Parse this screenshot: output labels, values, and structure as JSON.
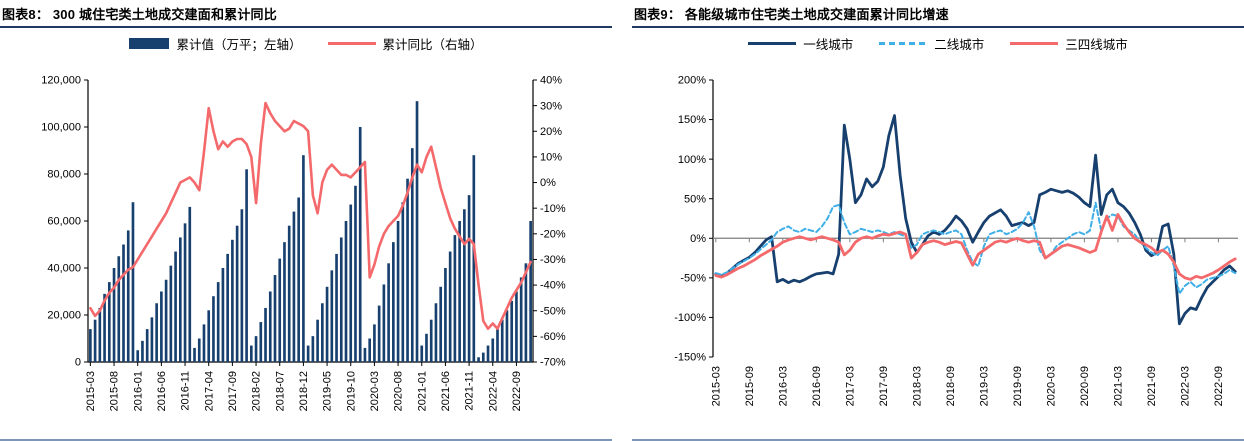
{
  "figures": [
    {
      "id": "fig8",
      "title": "图表8：  300 城住宅类土地成交建面和累计同比",
      "legend": [
        {
          "type": "bar",
          "color": "#17406f",
          "label": "累计值（万平；左轴）"
        },
        {
          "type": "line",
          "color": "#f4696b",
          "label": "累计同比（右轴）"
        }
      ],
      "chart_data": {
        "type": "bar+line",
        "n_points": 94,
        "x_tick_step": 5,
        "x_tick_labels": [
          "2015-03",
          "2015-08",
          "2016-01",
          "2016-06",
          "2016-11",
          "2017-04",
          "2017-09",
          "2018-02",
          "2018-07",
          "2018-12",
          "2019-05",
          "2019-10",
          "2020-03",
          "2020-08",
          "2021-01",
          "2021-06",
          "2021-11",
          "2022-04",
          "2022-09"
        ],
        "left_axis": {
          "min": 0,
          "max": 120000,
          "tick_labels_top_down": [
            "120,000",
            "100,000",
            "80,000",
            "60,000",
            "40,000",
            "20,000",
            "0"
          ]
        },
        "right_axis": {
          "min": -70,
          "max": 40,
          "tick_labels_top_down": [
            "40%",
            "30%",
            "20%",
            "10%",
            "0%",
            "-10%",
            "-20%",
            "-30%",
            "-40%",
            "-50%",
            "-60%",
            "-70%"
          ]
        },
        "series": [
          {
            "name": "累计值（万平；左轴）",
            "type": "bar",
            "axis": "left",
            "color": "#17406f",
            "values": [
              14000,
              18000,
              23000,
              29000,
              34000,
              40000,
              45000,
              50000,
              56000,
              68000,
              5000,
              9000,
              14000,
              19000,
              25000,
              30000,
              35000,
              41000,
              47000,
              53000,
              59000,
              66000,
              6000,
              10000,
              16000,
              22000,
              28000,
              34000,
              40000,
              46000,
              52000,
              58000,
              65000,
              82000,
              7000,
              11000,
              17000,
              23000,
              30000,
              37000,
              44000,
              51000,
              58000,
              64000,
              70000,
              88000,
              7000,
              11000,
              18000,
              25000,
              32000,
              39000,
              46000,
              53000,
              60000,
              67000,
              75000,
              100000,
              6000,
              10000,
              16000,
              24000,
              33000,
              42000,
              51000,
              60000,
              68000,
              78000,
              91000,
              111000,
              7000,
              12000,
              18000,
              25000,
              32000,
              40000,
              47000,
              54000,
              60000,
              65000,
              71000,
              88000,
              2000,
              4000,
              7000,
              10000,
              14000,
              18000,
              22000,
              26000,
              30000,
              36000,
              42000,
              60000
            ]
          },
          {
            "name": "累计同比（右轴）",
            "type": "line",
            "axis": "right",
            "color": "#f4696b",
            "width": 2.6,
            "values": [
              -49,
              -52,
              -50,
              -46,
              -43,
              -41,
              -38,
              -36,
              -34,
              -33,
              -30,
              -27,
              -24,
              -21,
              -18,
              -15,
              -12,
              -8,
              -4,
              0,
              1,
              2,
              0,
              -3,
              12,
              29,
              20,
              13,
              16,
              14,
              16,
              17,
              17,
              15,
              10,
              -8,
              15,
              31,
              27,
              24,
              22,
              20,
              21,
              24,
              23,
              22,
              20,
              -5,
              -12,
              0,
              5,
              7,
              5,
              3,
              3,
              2,
              4,
              6,
              8,
              -37,
              -32,
              -25,
              -20,
              -17,
              -15,
              -13,
              -9,
              -4,
              2,
              7,
              4,
              10,
              14,
              6,
              -2,
              -8,
              -14,
              -18,
              -21,
              -24,
              -22,
              -24,
              -40,
              -54,
              -57,
              -55,
              -57,
              -53,
              -49,
              -45,
              -42,
              -39,
              -35,
              -31
            ]
          }
        ]
      }
    },
    {
      "id": "fig9",
      "title": "图表9：  各能级城市住宅类土地成交建面累计同比增速",
      "legend": [
        {
          "type": "line",
          "color": "#17406f",
          "label": "一线城市"
        },
        {
          "type": "line-dashed",
          "color": "#3fafe8",
          "label": "二线城市"
        },
        {
          "type": "line",
          "color": "#f4696b",
          "label": "三四线城市"
        }
      ],
      "chart_data": {
        "type": "line",
        "n_points": 94,
        "x_tick_step": 6,
        "x_tick_labels": [
          "2015-03",
          "2015-09",
          "2016-03",
          "2016-09",
          "2017-03",
          "2017-09",
          "2018-03",
          "2018-09",
          "2019-03",
          "2019-09",
          "2020-03",
          "2020-09",
          "2021-03",
          "2021-09",
          "2022-03",
          "2022-09"
        ],
        "y_axis": {
          "min": -150,
          "max": 200,
          "tick_labels_top_down": [
            "200%",
            "150%",
            "100%",
            "50%",
            "0%",
            "-50%",
            "-100%",
            "-150%"
          ]
        },
        "zero_line": true,
        "series": [
          {
            "name": "一线城市",
            "color": "#17406f",
            "width": 2.8,
            "dash": "",
            "values": [
              -45,
              -48,
              -44,
              -38,
              -32,
              -28,
              -24,
              -18,
              -10,
              -2,
              2,
              -55,
              -52,
              -56,
              -53,
              -55,
              -52,
              -48,
              -45,
              -44,
              -43,
              -45,
              -20,
              143,
              100,
              45,
              55,
              75,
              65,
              72,
              90,
              130,
              155,
              80,
              25,
              -5,
              -18,
              -8,
              3,
              8,
              5,
              10,
              18,
              28,
              22,
              12,
              -5,
              8,
              20,
              28,
              32,
              36,
              28,
              16,
              18,
              20,
              16,
              20,
              55,
              58,
              62,
              60,
              58,
              60,
              57,
              52,
              45,
              40,
              105,
              30,
              55,
              62,
              45,
              40,
              32,
              20,
              5,
              -15,
              -22,
              -18,
              15,
              18,
              -20,
              -108,
              -95,
              -88,
              -90,
              -75,
              -62,
              -55,
              -48,
              -40,
              -35,
              -42
            ]
          },
          {
            "name": "二线城市",
            "color": "#3fafe8",
            "width": 2.0,
            "dash": "5 3",
            "values": [
              -44,
              -46,
              -43,
              -38,
              -33,
              -29,
              -25,
              -20,
              -14,
              -8,
              -2,
              8,
              12,
              15,
              10,
              8,
              12,
              10,
              8,
              15,
              25,
              40,
              42,
              20,
              5,
              8,
              12,
              10,
              8,
              10,
              8,
              5,
              8,
              5,
              2,
              -12,
              -8,
              5,
              8,
              10,
              8,
              5,
              8,
              10,
              5,
              -15,
              -30,
              -35,
              -10,
              5,
              8,
              10,
              5,
              8,
              12,
              20,
              33,
              15,
              -15,
              -25,
              -20,
              -10,
              -5,
              0,
              5,
              8,
              5,
              10,
              45,
              10,
              25,
              30,
              28,
              15,
              10,
              5,
              -5,
              -12,
              -18,
              -22,
              -15,
              -10,
              -35,
              -70,
              -60,
              -55,
              -62,
              -58,
              -52,
              -50,
              -48,
              -45,
              -40,
              -44
            ]
          },
          {
            "name": "三四线城市",
            "color": "#f4696b",
            "width": 2.8,
            "dash": "",
            "values": [
              -47,
              -49,
              -46,
              -42,
              -38,
              -35,
              -31,
              -27,
              -22,
              -18,
              -14,
              -10,
              -5,
              -2,
              0,
              2,
              0,
              -2,
              0,
              2,
              0,
              -2,
              -5,
              -21,
              -15,
              -5,
              0,
              2,
              0,
              3,
              5,
              4,
              6,
              8,
              5,
              -25,
              -18,
              -8,
              -5,
              -3,
              -5,
              -8,
              -6,
              -4,
              -6,
              -20,
              -34,
              -20,
              -15,
              -10,
              -5,
              -3,
              -5,
              -2,
              0,
              -3,
              -5,
              -3,
              -5,
              -25,
              -20,
              -15,
              -10,
              -8,
              -10,
              -12,
              -15,
              -18,
              -15,
              8,
              28,
              10,
              30,
              18,
              8,
              0,
              -5,
              -8,
              -12,
              -18,
              -15,
              -20,
              -30,
              -45,
              -50,
              -52,
              -48,
              -50,
              -47,
              -44,
              -40,
              -35,
              -30,
              -26
            ]
          }
        ]
      }
    }
  ],
  "colors": {
    "navy": "#17406f",
    "salmon": "#f4696b",
    "sky_blue": "#3fafe8",
    "title_underline": "#1f3864",
    "figure_bottom_border": "#7b96b8",
    "axis": "#000000",
    "zero_line": "#7f7f7f"
  }
}
